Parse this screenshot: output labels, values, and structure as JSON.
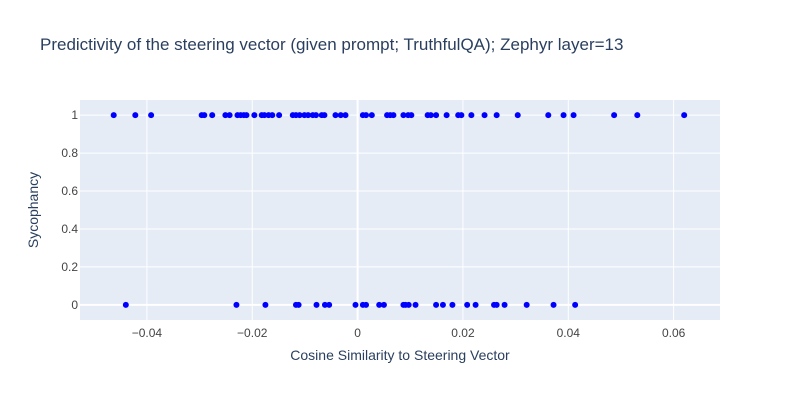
{
  "chart_data": {
    "type": "scatter",
    "title": "Predictivity of the steering vector (given prompt; TruthfulQA); Zephyr layer=13",
    "xlabel": "Cosine Similarity to Steering Vector",
    "ylabel": "Sycophancy",
    "xlim": [
      -0.0527,
      0.0688
    ],
    "ylim": [
      -0.08,
      1.08
    ],
    "x_ticks": [
      -0.04,
      -0.02,
      0,
      0.02,
      0.04,
      0.06
    ],
    "x_tick_labels": [
      "−0.04",
      "−0.02",
      "0",
      "0.02",
      "0.04",
      "0.06"
    ],
    "y_ticks": [
      0,
      0.2,
      0.4,
      0.6,
      0.8,
      1
    ],
    "y_tick_labels": [
      "0",
      "0.2",
      "0.4",
      "0.6",
      "0.8",
      "1"
    ],
    "grid": true,
    "legend": "none",
    "colors": {
      "marker": "#0000ff",
      "plot_bg": "#e5ecf6",
      "grid": "#ffffff",
      "text": "#2a3f5f",
      "tick_text": "#444444"
    },
    "series": [
      {
        "points": [
          {
            "x": -0.0463,
            "y": 1
          },
          {
            "x": -0.0422,
            "y": 1
          },
          {
            "x": -0.0392,
            "y": 1
          },
          {
            "x": -0.0296,
            "y": 1
          },
          {
            "x": -0.0291,
            "y": 1
          },
          {
            "x": -0.0276,
            "y": 1
          },
          {
            "x": -0.0251,
            "y": 1
          },
          {
            "x": -0.0243,
            "y": 1
          },
          {
            "x": -0.0228,
            "y": 1
          },
          {
            "x": -0.0222,
            "y": 1
          },
          {
            "x": -0.0216,
            "y": 1
          },
          {
            "x": -0.0211,
            "y": 1
          },
          {
            "x": -0.0196,
            "y": 1
          },
          {
            "x": -0.0182,
            "y": 1
          },
          {
            "x": -0.0177,
            "y": 1
          },
          {
            "x": -0.0169,
            "y": 1
          },
          {
            "x": -0.0162,
            "y": 1
          },
          {
            "x": -0.0149,
            "y": 1
          },
          {
            "x": -0.0123,
            "y": 1
          },
          {
            "x": -0.0117,
            "y": 1
          },
          {
            "x": -0.011,
            "y": 1
          },
          {
            "x": -0.0101,
            "y": 1
          },
          {
            "x": -0.0094,
            "y": 1
          },
          {
            "x": -0.0085,
            "y": 1
          },
          {
            "x": -0.0079,
            "y": 1
          },
          {
            "x": -0.0068,
            "y": 1
          },
          {
            "x": -0.0063,
            "y": 1
          },
          {
            "x": -0.0042,
            "y": 1
          },
          {
            "x": -0.0032,
            "y": 1
          },
          {
            "x": -0.0023,
            "y": 1
          },
          {
            "x": 0.001,
            "y": 1
          },
          {
            "x": 0.0016,
            "y": 1
          },
          {
            "x": 0.0027,
            "y": 1
          },
          {
            "x": 0.0056,
            "y": 1
          },
          {
            "x": 0.0062,
            "y": 1
          },
          {
            "x": 0.0068,
            "y": 1
          },
          {
            "x": 0.0087,
            "y": 1
          },
          {
            "x": 0.0096,
            "y": 1
          },
          {
            "x": 0.0102,
            "y": 1
          },
          {
            "x": 0.0133,
            "y": 1
          },
          {
            "x": 0.0139,
            "y": 1
          },
          {
            "x": 0.0149,
            "y": 1
          },
          {
            "x": 0.0169,
            "y": 1
          },
          {
            "x": 0.0191,
            "y": 1
          },
          {
            "x": 0.0197,
            "y": 1
          },
          {
            "x": 0.0216,
            "y": 1
          },
          {
            "x": 0.0241,
            "y": 1
          },
          {
            "x": 0.0264,
            "y": 1
          },
          {
            "x": 0.0304,
            "y": 1
          },
          {
            "x": 0.0362,
            "y": 1
          },
          {
            "x": 0.0391,
            "y": 1
          },
          {
            "x": 0.041,
            "y": 1
          },
          {
            "x": 0.0487,
            "y": 1
          },
          {
            "x": 0.0531,
            "y": 1
          },
          {
            "x": 0.062,
            "y": 1
          },
          {
            "x": -0.044,
            "y": 0
          },
          {
            "x": -0.023,
            "y": 0
          },
          {
            "x": -0.0175,
            "y": 0
          },
          {
            "x": -0.0117,
            "y": 0
          },
          {
            "x": -0.0112,
            "y": 0
          },
          {
            "x": -0.0078,
            "y": 0
          },
          {
            "x": -0.0062,
            "y": 0
          },
          {
            "x": -0.0054,
            "y": 0
          },
          {
            "x": -0.0004,
            "y": 0
          },
          {
            "x": 0.001,
            "y": 0
          },
          {
            "x": 0.0016,
            "y": 0
          },
          {
            "x": 0.0041,
            "y": 0
          },
          {
            "x": 0.005,
            "y": 0
          },
          {
            "x": 0.0087,
            "y": 0
          },
          {
            "x": 0.0091,
            "y": 0
          },
          {
            "x": 0.0097,
            "y": 0
          },
          {
            "x": 0.011,
            "y": 0
          },
          {
            "x": 0.0149,
            "y": 0
          },
          {
            "x": 0.0162,
            "y": 0
          },
          {
            "x": 0.018,
            "y": 0
          },
          {
            "x": 0.0208,
            "y": 0
          },
          {
            "x": 0.0224,
            "y": 0
          },
          {
            "x": 0.0259,
            "y": 0
          },
          {
            "x": 0.0264,
            "y": 0
          },
          {
            "x": 0.0279,
            "y": 0
          },
          {
            "x": 0.0321,
            "y": 0
          },
          {
            "x": 0.0372,
            "y": 0
          },
          {
            "x": 0.0413,
            "y": 0
          }
        ]
      }
    ]
  }
}
